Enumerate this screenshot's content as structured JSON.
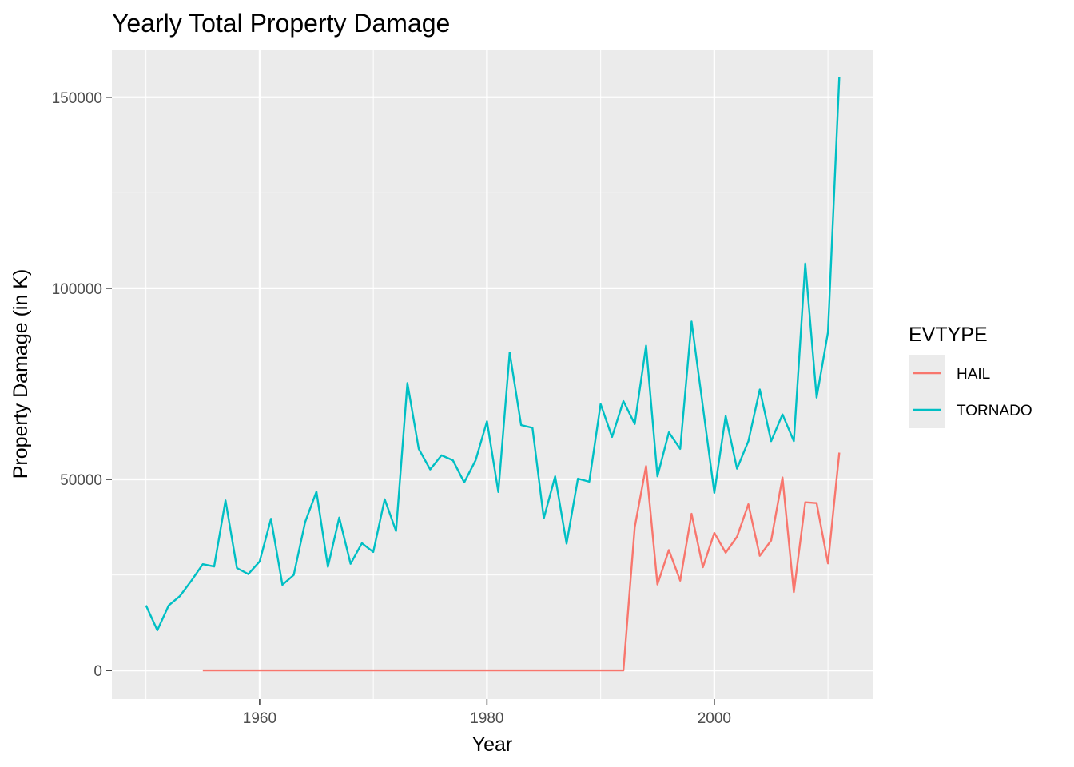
{
  "chart_data": {
    "type": "line",
    "title": "Yearly Total Property Damage",
    "xlabel": "Year",
    "ylabel": "Property Damage (in K)",
    "xlim": [
      1947,
      2014
    ],
    "ylim": [
      -7500,
      162500
    ],
    "x_ticks": [
      1960,
      1980,
      2000
    ],
    "y_ticks": [
      0,
      50000,
      100000,
      150000
    ],
    "grid": true,
    "legend": {
      "title": "EVTYPE",
      "position": "right"
    },
    "series": [
      {
        "name": "HAIL",
        "color": "#F8766D",
        "x": [
          1955,
          1956,
          1957,
          1958,
          1959,
          1960,
          1961,
          1962,
          1963,
          1964,
          1965,
          1966,
          1967,
          1968,
          1969,
          1970,
          1971,
          1972,
          1973,
          1974,
          1975,
          1976,
          1977,
          1978,
          1979,
          1980,
          1981,
          1982,
          1983,
          1984,
          1985,
          1986,
          1987,
          1988,
          1989,
          1990,
          1991,
          1992,
          1993,
          1994,
          1995,
          1996,
          1997,
          1998,
          1999,
          2000,
          2001,
          2002,
          2003,
          2004,
          2005,
          2006,
          2007,
          2008,
          2009,
          2010,
          2011
        ],
        "values": [
          0,
          0,
          0,
          0,
          0,
          0,
          0,
          0,
          0,
          0,
          0,
          0,
          0,
          0,
          0,
          0,
          0,
          0,
          0,
          0,
          0,
          0,
          0,
          0,
          0,
          0,
          0,
          0,
          0,
          0,
          0,
          0,
          0,
          0,
          0,
          0,
          0,
          0,
          37500,
          53500,
          22500,
          31500,
          23500,
          41000,
          27000,
          36000,
          30800,
          35000,
          43500,
          30000,
          34000,
          50500,
          20500,
          44000,
          43800,
          28000,
          57000
        ]
      },
      {
        "name": "TORNADO",
        "color": "#00BFC4",
        "x": [
          1950,
          1951,
          1952,
          1953,
          1954,
          1955,
          1956,
          1957,
          1958,
          1959,
          1960,
          1961,
          1962,
          1963,
          1964,
          1965,
          1966,
          1967,
          1968,
          1969,
          1970,
          1971,
          1972,
          1973,
          1974,
          1975,
          1976,
          1977,
          1978,
          1979,
          1980,
          1981,
          1982,
          1983,
          1984,
          1985,
          1986,
          1987,
          1988,
          1989,
          1990,
          1991,
          1992,
          1993,
          1994,
          1995,
          1996,
          1997,
          1998,
          1999,
          2000,
          2001,
          2002,
          2003,
          2004,
          2005,
          2006,
          2007,
          2008,
          2009,
          2010,
          2011
        ],
        "values": [
          17000,
          10500,
          17000,
          19500,
          23500,
          27800,
          27200,
          44500,
          26800,
          25200,
          28500,
          39700,
          22400,
          25000,
          38800,
          46800,
          27100,
          40000,
          27900,
          33300,
          31000,
          44800,
          36500,
          75200,
          58000,
          52600,
          56300,
          55000,
          49200,
          55000,
          65200,
          46700,
          83200,
          64200,
          63500,
          39800,
          50800,
          33200,
          50200,
          49400,
          69700,
          61100,
          70500,
          64500,
          85000,
          50800,
          62300,
          58000,
          91300,
          69000,
          46500,
          66600,
          52800,
          60000,
          73500,
          60000,
          67000,
          60000,
          106500,
          71400,
          88500,
          155200
        ]
      }
    ]
  }
}
